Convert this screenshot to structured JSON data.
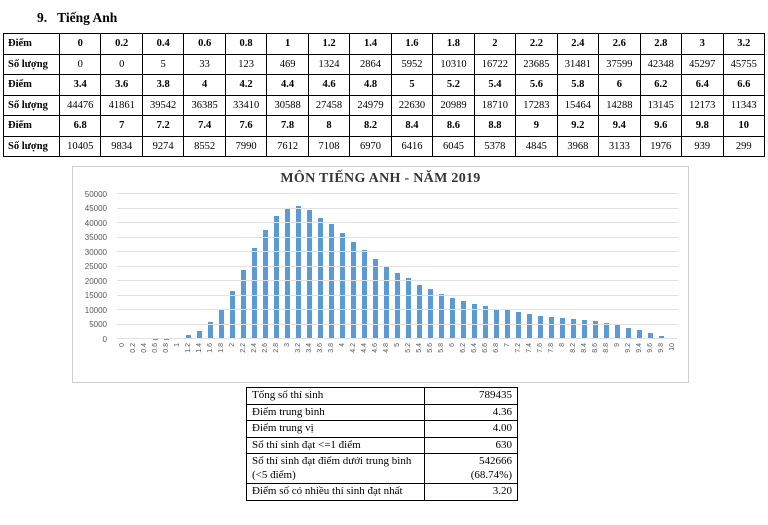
{
  "heading": {
    "number": "9.",
    "title": "Tiếng Anh"
  },
  "score_table": {
    "rows": [
      {
        "label": "Điểm",
        "bold": true,
        "cells": [
          "0",
          "0.2",
          "0.4",
          "0.6",
          "0.8",
          "1",
          "1.2",
          "1.4",
          "1.6",
          "1.8",
          "2",
          "2.2",
          "2.4",
          "2.6",
          "2.8",
          "3",
          "3.2"
        ]
      },
      {
        "label": "Số lượng",
        "bold": false,
        "cells": [
          "0",
          "0",
          "5",
          "33",
          "123",
          "469",
          "1324",
          "2864",
          "5952",
          "10310",
          "16722",
          "23685",
          "31481",
          "37599",
          "42348",
          "45297",
          "45755"
        ]
      },
      {
        "label": "Điểm",
        "bold": true,
        "cells": [
          "3.4",
          "3.6",
          "3.8",
          "4",
          "4.2",
          "4.4",
          "4.6",
          "4.8",
          "5",
          "5.2",
          "5.4",
          "5.6",
          "5.8",
          "6",
          "6.2",
          "6.4",
          "6.6"
        ]
      },
      {
        "label": "Số lượng",
        "bold": false,
        "cells": [
          "44476",
          "41861",
          "39542",
          "36385",
          "33410",
          "30588",
          "27458",
          "24979",
          "22630",
          "20989",
          "18710",
          "17283",
          "15464",
          "14288",
          "13145",
          "12173",
          "11343"
        ]
      },
      {
        "label": "Điểm",
        "bold": true,
        "cells": [
          "6.8",
          "7",
          "7.2",
          "7.4",
          "7.6",
          "7.8",
          "8",
          "8.2",
          "8.4",
          "8.6",
          "8.8",
          "9",
          "9.2",
          "9.4",
          "9.6",
          "9.8",
          "10"
        ]
      },
      {
        "label": "Số lượng",
        "bold": false,
        "cells": [
          "10405",
          "9834",
          "9274",
          "8552",
          "7990",
          "7612",
          "7108",
          "6970",
          "6416",
          "6045",
          "5378",
          "4845",
          "3968",
          "3133",
          "1976",
          "939",
          "299"
        ]
      }
    ]
  },
  "chart_data": {
    "type": "bar",
    "title": "MÔN TIẾNG ANH - NĂM 2019",
    "xlabel": "",
    "ylabel": "",
    "ylim": [
      0,
      50000
    ],
    "ytick_step": 5000,
    "grid": true,
    "legend": "none",
    "categories": [
      "0",
      "0.2",
      "0.4",
      "0.6",
      "0.8",
      "1",
      "1.2",
      "1.4",
      "1.6",
      "1.8",
      "2",
      "2.2",
      "2.4",
      "2.6",
      "2.8",
      "3",
      "3.2",
      "3.4",
      "3.6",
      "3.8",
      "4",
      "4.2",
      "4.4",
      "4.6",
      "4.8",
      "5",
      "5.2",
      "5.4",
      "5.6",
      "5.8",
      "6",
      "6.2",
      "6.4",
      "6.6",
      "6.8",
      "7",
      "7.2",
      "7.4",
      "7.6",
      "7.8",
      "8",
      "8.2",
      "8.4",
      "8.6",
      "8.8",
      "9",
      "9.2",
      "9.4",
      "9.6",
      "9.8",
      "10"
    ],
    "values": [
      0,
      0,
      5,
      33,
      123,
      469,
      1324,
      2864,
      5952,
      10310,
      16722,
      23685,
      31481,
      37599,
      42348,
      45297,
      45755,
      44476,
      41861,
      39542,
      36385,
      33410,
      30588,
      27458,
      24979,
      22630,
      20989,
      18710,
      17283,
      15464,
      14288,
      13145,
      12173,
      11343,
      10405,
      9834,
      9274,
      8552,
      7990,
      7612,
      7108,
      6970,
      6416,
      6045,
      5378,
      4845,
      3968,
      3133,
      1976,
      939,
      299
    ]
  },
  "summary_table": {
    "rows": [
      {
        "label": "Tổng số thí sinh",
        "value": "789435"
      },
      {
        "label": "Điểm trung bình",
        "value": "4.36"
      },
      {
        "label": "Điểm trung vị",
        "value": "4.00"
      },
      {
        "label": "Số thí sinh đạt <=1 điểm",
        "value": "630"
      },
      {
        "label": "Số thí sinh đạt điểm dưới trung bình\n(<5 điểm)",
        "value": "542666\n(68.74%)"
      },
      {
        "label": "Điểm số có nhiều thí sinh đạt nhất",
        "value": "3.20"
      }
    ]
  },
  "colors": {
    "bar": "#5b9bd5",
    "gridline": "#e2e2e2",
    "axis_text": "#595959",
    "chart_title": "#363636",
    "chart_border": "#cfcfcf",
    "table_border": "#000000"
  }
}
